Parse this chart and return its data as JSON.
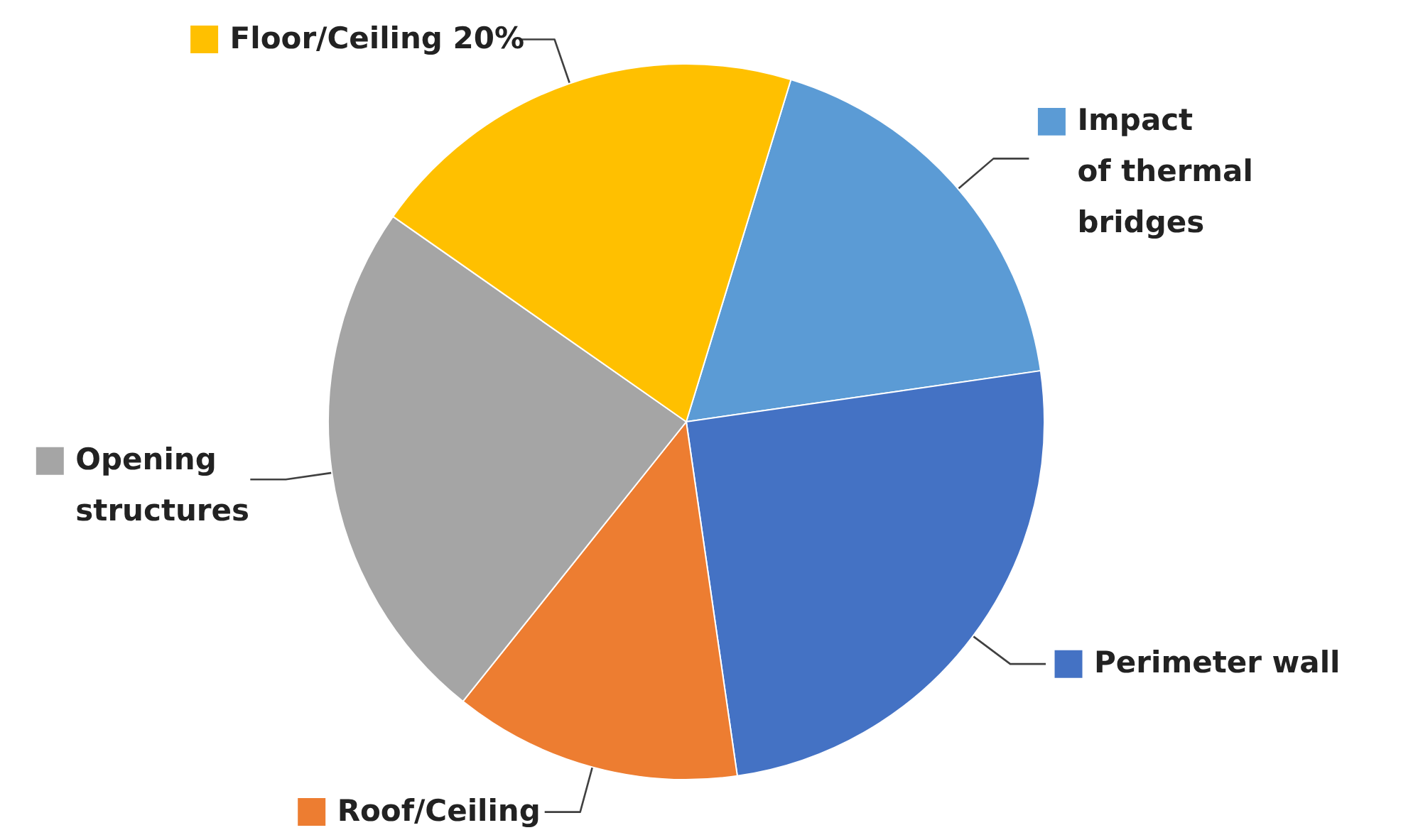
{
  "chart_data": {
    "type": "pie",
    "categories": [
      "Impact\nof thermal\nbridges",
      "Perimeter wall",
      "Roof/Ceiling",
      "Opening\nstructures",
      "Floor/Ceiling"
    ],
    "values": [
      18,
      25,
      13,
      24,
      20
    ],
    "value_labels": [
      null,
      null,
      null,
      null,
      "20%"
    ],
    "colors": [
      "#5b9bd5",
      "#4472c4",
      "#ed7d31",
      "#a5a5a5",
      "#ffc000"
    ],
    "legend": true
  }
}
